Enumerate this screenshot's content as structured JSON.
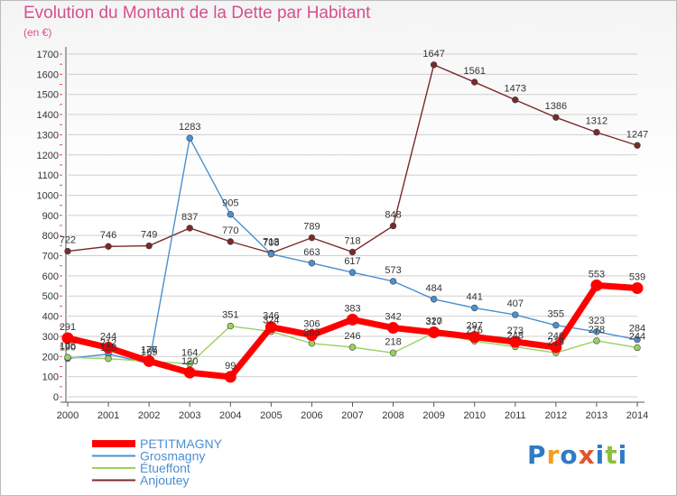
{
  "header": {
    "title": "Evolution du Montant de la Dette par Habitant",
    "subtitle": "(en €)"
  },
  "brand": {
    "letters": [
      "P",
      "r",
      "o",
      "x",
      "i",
      "t",
      "i"
    ],
    "letter_colors": [
      "#2e7bc4",
      "#f0a020",
      "#2e7bc4",
      "#e0562a",
      "#2e7bc4",
      "#8cbf3f",
      "#2e7bc4"
    ]
  },
  "chart_data": {
    "type": "line",
    "title": "Evolution du Montant de la Dette par Habitant",
    "subtitle": "(en €)",
    "xlabel": "",
    "ylabel": "",
    "x": [
      "2000",
      "2001",
      "2002",
      "2003",
      "2004",
      "2005",
      "2006",
      "2007",
      "2008",
      "2009",
      "2010",
      "2011",
      "2012",
      "2013",
      "2014"
    ],
    "ylim": [
      0,
      1700
    ],
    "yticks": [
      0,
      100,
      200,
      300,
      400,
      500,
      600,
      700,
      800,
      900,
      1000,
      1100,
      1200,
      1300,
      1400,
      1500,
      1600,
      1700
    ],
    "grid": "horizontal",
    "legend": "bottom-left",
    "series": [
      {
        "name": "PETITMAGNY",
        "color": "#ff0000",
        "values": [
          291,
          244,
          177,
          120,
          99,
          346,
          306,
          383,
          342,
          320,
          297,
          273,
          246,
          553,
          539
        ],
        "labels": [
          "291",
          "244",
          "177",
          "120",
          "99",
          "346",
          "306",
          "383",
          "342",
          "320",
          "297",
          "273",
          "246",
          "553",
          "539"
        ]
      },
      {
        "name": "Grosmagny",
        "color": "#4a90d0",
        "values": [
          190,
          212,
          165,
          1283,
          905,
          708,
          663,
          617,
          573,
          484,
          441,
          407,
          355,
          323,
          284
        ],
        "labels": [
          "190",
          "212",
          "165",
          "1283",
          "905",
          "708",
          "663",
          "617",
          "573",
          "484",
          "441",
          "407",
          "355",
          "323",
          "284"
        ]
      },
      {
        "name": "Étueffont",
        "color": "#99d15f",
        "values": [
          196,
          189,
          176,
          164,
          351,
          324,
          265,
          246,
          218,
          317,
          276,
          248,
          218,
          278,
          244
        ],
        "labels": [
          "196",
          "189",
          "176",
          "164",
          "351",
          "324",
          "265",
          "246",
          "218",
          "317",
          "276",
          "248",
          "218",
          "278",
          "244"
        ]
      },
      {
        "name": "Anjoutey",
        "color": "#7a2a2a",
        "values": [
          722,
          746,
          749,
          837,
          770,
          713,
          789,
          718,
          848,
          1647,
          1561,
          1473,
          1386,
          1312,
          1247
        ],
        "labels": [
          "722",
          "746",
          "749",
          "837",
          "770",
          "713",
          "789",
          "718",
          "848",
          "1647",
          "1561",
          "1473",
          "1386",
          "1312",
          "1247"
        ]
      }
    ]
  }
}
